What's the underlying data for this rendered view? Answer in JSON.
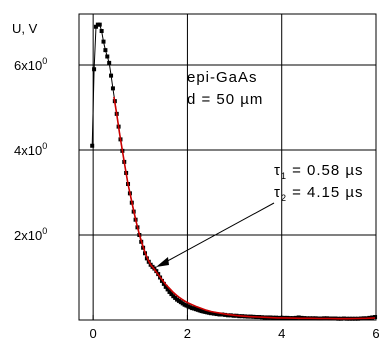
{
  "chart_data": {
    "type": "line",
    "ylabel": "U, V",
    "xlim": [
      -0.3,
      6
    ],
    "ylim": [
      0,
      7.2
    ],
    "grid": true,
    "x_ticks": [
      0,
      2,
      4,
      6
    ],
    "x_tick_labels": [
      "0",
      "2",
      "4",
      "6"
    ],
    "y_ticks": [
      2,
      4,
      6
    ],
    "y_tick_labels": [
      {
        "mantissa": "2x10",
        "exp": "0"
      },
      {
        "mantissa": "4x10",
        "exp": "0"
      },
      {
        "mantissa": "6x10",
        "exp": "0"
      }
    ],
    "annotations": {
      "sample": "epi-GaAs",
      "thickness": "d = 50 µm",
      "tau1": {
        "symbol": "τ",
        "sub": "1",
        "text": " = 0.58 µs"
      },
      "tau2": {
        "symbol": "τ",
        "sub": "2",
        "text": " = 4.15 µs"
      }
    },
    "series": [
      {
        "color": "#000000",
        "marker": "square",
        "x": [
          -0.02,
          0.02,
          0.06,
          0.1,
          0.14,
          0.18,
          0.22,
          0.26,
          0.3,
          0.34,
          0.38,
          0.42,
          0.46,
          0.5,
          0.54,
          0.58,
          0.62,
          0.66,
          0.7,
          0.74,
          0.78,
          0.82,
          0.86,
          0.9,
          0.94,
          0.98,
          1.02,
          1.06,
          1.1,
          1.14,
          1.18,
          1.22,
          1.26,
          1.3,
          1.34,
          1.38,
          1.42,
          1.46,
          1.5,
          1.54,
          1.58,
          1.62,
          1.66,
          1.7,
          1.74,
          1.78,
          1.82,
          1.86,
          1.9,
          1.94,
          1.98,
          2.02,
          2.06,
          2.1,
          2.14,
          2.18,
          2.22,
          2.26,
          2.3,
          2.34,
          2.38,
          2.42,
          2.46,
          2.5,
          2.56,
          2.62,
          2.68,
          2.74,
          2.8,
          2.86,
          2.92,
          2.98,
          3.04,
          3.1,
          3.16,
          3.22,
          3.28,
          3.34,
          3.4,
          3.46,
          3.52,
          3.58,
          3.64,
          3.7,
          3.76,
          3.82,
          3.88,
          3.94,
          4.0,
          4.06,
          4.12,
          4.18,
          4.24,
          4.3,
          4.36,
          4.42,
          4.48,
          4.54,
          4.6,
          4.66,
          4.72,
          4.78,
          4.84,
          4.9,
          4.96,
          5.02,
          5.08,
          5.14,
          5.2,
          5.26,
          5.32,
          5.38,
          5.44,
          5.5,
          5.56,
          5.62,
          5.68,
          5.74,
          5.8,
          5.86,
          5.92,
          5.98
        ],
        "y": [
          4.1,
          5.9,
          6.9,
          6.95,
          6.95,
          6.8,
          6.55,
          6.35,
          6.2,
          6.05,
          5.75,
          5.45,
          5.15,
          4.85,
          4.55,
          4.25,
          3.98,
          3.72,
          3.46,
          3.2,
          2.98,
          2.76,
          2.55,
          2.36,
          2.18,
          2.0,
          1.84,
          1.7,
          1.57,
          1.45,
          1.37,
          1.3,
          1.25,
          1.21,
          1.15,
          1.08,
          1.0,
          0.92,
          0.85,
          0.78,
          0.72,
          0.66,
          0.61,
          0.56,
          0.52,
          0.48,
          0.45,
          0.42,
          0.39,
          0.36,
          0.34,
          0.32,
          0.3,
          0.28,
          0.27,
          0.255,
          0.24,
          0.225,
          0.21,
          0.2,
          0.19,
          0.18,
          0.17,
          0.16,
          0.15,
          0.14,
          0.13,
          0.13,
          0.12,
          0.11,
          0.11,
          0.1,
          0.1,
          0.09,
          0.09,
          0.085,
          0.08,
          0.08,
          0.075,
          0.07,
          0.07,
          0.065,
          0.06,
          0.06,
          0.06,
          0.055,
          0.055,
          0.05,
          0.05,
          0.05,
          0.05,
          0.045,
          0.045,
          0.05,
          0.06,
          0.05,
          0.045,
          0.04,
          0.04,
          0.04,
          0.04,
          0.035,
          0.035,
          0.04,
          0.04,
          0.035,
          0.035,
          0.035,
          0.03,
          0.03,
          0.035,
          0.03,
          0.03,
          0.03,
          0.03,
          0.03,
          0.035,
          0.04,
          0.04,
          0.05,
          0.06,
          0.07
        ]
      },
      {
        "color": "#cc0000",
        "marker": "none",
        "x": [
          0.44,
          0.5,
          0.56,
          0.62,
          0.68,
          0.74,
          0.8,
          0.86,
          0.92,
          0.98,
          1.04,
          1.1,
          1.16,
          1.22,
          1.28,
          1.34,
          1.4,
          1.46,
          1.52,
          1.58,
          1.64,
          1.7,
          1.76,
          1.82,
          1.88,
          1.94,
          2.0,
          2.1,
          2.2,
          2.3,
          2.4,
          2.5,
          2.6,
          2.7,
          2.8,
          2.9,
          3.0,
          3.1,
          3.2,
          3.3,
          3.4,
          3.5,
          3.6,
          3.7,
          3.8,
          3.9,
          4.0,
          4.2,
          4.4,
          4.6,
          4.8,
          5.0,
          5.2,
          5.4,
          5.6,
          5.8,
          5.98
        ],
        "y": [
          5.25,
          4.85,
          4.4,
          3.98,
          3.58,
          3.2,
          2.88,
          2.57,
          2.28,
          2.02,
          1.79,
          1.59,
          1.43,
          1.3,
          1.22,
          1.13,
          1.04,
          0.95,
          0.86,
          0.79,
          0.72,
          0.65,
          0.59,
          0.54,
          0.49,
          0.45,
          0.41,
          0.36,
          0.31,
          0.27,
          0.23,
          0.2,
          0.18,
          0.16,
          0.14,
          0.125,
          0.11,
          0.1,
          0.09,
          0.08,
          0.075,
          0.07,
          0.065,
          0.06,
          0.055,
          0.05,
          0.05,
          0.045,
          0.04,
          0.04,
          0.035,
          0.035,
          0.03,
          0.03,
          0.035,
          0.04,
          0.05
        ]
      }
    ]
  }
}
